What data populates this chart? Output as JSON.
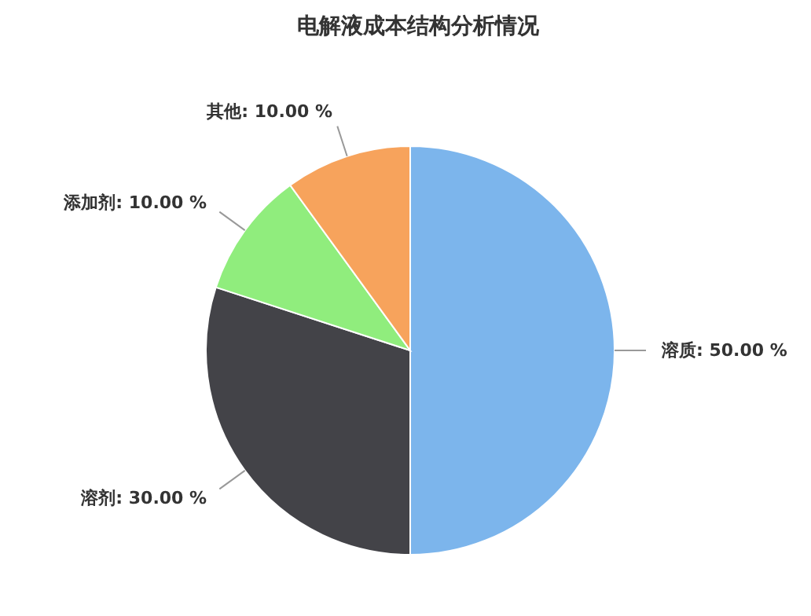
{
  "chart_data": {
    "type": "pie",
    "title": "电解液成本结构分析情况",
    "categories": [
      "溶质",
      "溶剂",
      "添加剂",
      "其他"
    ],
    "values": [
      50,
      30,
      10,
      10
    ],
    "value_labels": [
      "50.00 %",
      "30.00 %",
      "10.00 %",
      "10.00 %"
    ],
    "colors": [
      "#7cb5ec",
      "#434348",
      "#90ed7d",
      "#f7a35c"
    ],
    "legend": false
  }
}
